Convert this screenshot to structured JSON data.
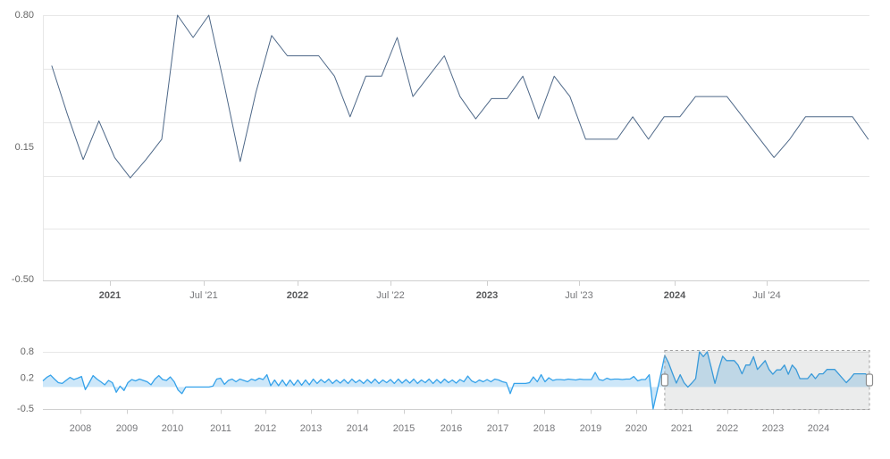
{
  "chart_data": [
    {
      "id": "main-chart",
      "type": "line",
      "title": "",
      "xlabel": "",
      "ylabel": "",
      "interval": "monthly",
      "x_start": "2020-09",
      "x_end": "2025-01",
      "ylim": [
        -0.5,
        0.8
      ],
      "grid": true,
      "legend": false,
      "line_color": "#4e6888",
      "yticks": [
        {
          "label": "0.80",
          "value": 0.8
        },
        {
          "label": "0.15",
          "value": 0.15
        },
        {
          "label": "-0.50",
          "value": -0.5
        }
      ],
      "xticks": [
        {
          "label": "2021",
          "emphasis": true
        },
        {
          "label": "Jul '21",
          "emphasis": false
        },
        {
          "label": "2022",
          "emphasis": true
        },
        {
          "label": "Jul '22",
          "emphasis": false
        },
        {
          "label": "2023",
          "emphasis": true
        },
        {
          "label": "Jul '23",
          "emphasis": false
        },
        {
          "label": "2024",
          "emphasis": true
        },
        {
          "label": "Jul '24",
          "emphasis": false
        }
      ],
      "series": [
        {
          "name": "series-1",
          "values": [
            0.55,
            0.31,
            0.09,
            0.28,
            0.1,
            0.0,
            0.09,
            0.19,
            0.8,
            0.69,
            0.8,
            0.45,
            0.08,
            0.42,
            0.7,
            0.6,
            0.6,
            0.6,
            0.5,
            0.3,
            0.5,
            0.5,
            0.69,
            0.4,
            0.5,
            0.6,
            0.4,
            0.29,
            0.39,
            0.39,
            0.5,
            0.29,
            0.5,
            0.4,
            0.19,
            0.19,
            0.19,
            0.3,
            0.19,
            0.3,
            0.3,
            0.4,
            0.4,
            0.4,
            0.3,
            0.2,
            0.1,
            0.19,
            0.3,
            0.3,
            0.3,
            0.3,
            0.19
          ]
        }
      ]
    },
    {
      "id": "navigator",
      "type": "area",
      "interval": "monthly",
      "x_start": "2007-03",
      "x_end": "2025-01",
      "ylim": [
        -0.5,
        0.8
      ],
      "baseline": 0,
      "grid": false,
      "legend": false,
      "line_color": "#35a2ea",
      "fill_color": "rgba(56,160,232,0.25)",
      "yticks": [
        {
          "label": "0.8",
          "value": 0.8
        },
        {
          "label": "0.2",
          "value": 0.2
        },
        {
          "label": "-0.5",
          "value": -0.5
        }
      ],
      "xticks": [
        {
          "label": "2008"
        },
        {
          "label": "2009"
        },
        {
          "label": "2010"
        },
        {
          "label": "2011"
        },
        {
          "label": "2012"
        },
        {
          "label": "2013"
        },
        {
          "label": "2014"
        },
        {
          "label": "2015"
        },
        {
          "label": "2016"
        },
        {
          "label": "2017"
        },
        {
          "label": "2018"
        },
        {
          "label": "2019"
        },
        {
          "label": "2020"
        },
        {
          "label": "2021"
        },
        {
          "label": "2022"
        },
        {
          "label": "2023"
        },
        {
          "label": "2024"
        }
      ],
      "values_before_selected_range": [
        0.14,
        0.22,
        0.27,
        0.18,
        0.1,
        0.08,
        0.15,
        0.22,
        0.17,
        0.2,
        0.24,
        -0.06,
        0.1,
        0.26,
        0.18,
        0.12,
        0.05,
        0.15,
        0.1,
        -0.12,
        0.02,
        -0.08,
        0.1,
        0.17,
        0.14,
        0.18,
        0.15,
        0.12,
        0.05,
        0.18,
        0.26,
        0.17,
        0.15,
        0.23,
        0.12,
        -0.07,
        -0.15,
        0.0,
        0.0,
        0.0,
        0.0,
        0.0,
        0.0,
        0.0,
        0.02,
        0.18,
        0.2,
        0.06,
        0.15,
        0.18,
        0.12,
        0.18,
        0.15,
        0.12,
        0.18,
        0.15,
        0.2,
        0.17,
        0.28,
        0.03,
        0.16,
        0.03,
        0.16,
        0.03,
        0.16,
        0.04,
        0.16,
        0.04,
        0.16,
        0.05,
        0.18,
        0.08,
        0.17,
        0.1,
        0.18,
        0.08,
        0.16,
        0.09,
        0.17,
        0.08,
        0.18,
        0.1,
        0.16,
        0.08,
        0.17,
        0.09,
        0.18,
        0.08,
        0.16,
        0.1,
        0.17,
        0.08,
        0.18,
        0.09,
        0.17,
        0.09,
        0.18,
        0.08,
        0.16,
        0.1,
        0.18,
        0.08,
        0.17,
        0.09,
        0.18,
        0.1,
        0.16,
        0.09,
        0.17,
        0.12,
        0.25,
        0.14,
        0.1,
        0.16,
        0.12,
        0.17,
        0.12,
        0.18,
        0.16,
        0.12,
        0.1,
        -0.15,
        0.08,
        0.08,
        0.08,
        0.08,
        0.1,
        0.23,
        0.12,
        0.28,
        0.12,
        0.21,
        0.15,
        0.17,
        0.17,
        0.16,
        0.18,
        0.17,
        0.16,
        0.18,
        0.17,
        0.17,
        0.17,
        0.33,
        0.17,
        0.15,
        0.2,
        0.17,
        0.18,
        0.18,
        0.17,
        0.18,
        0.18,
        0.24,
        0.14,
        0.17,
        0.17,
        0.28,
        -0.5,
        -0.1,
        0.3,
        0.72
      ],
      "selected_range": {
        "from_month": "2020-09",
        "to_month": "2025-01",
        "data_source": "main-chart series-1"
      }
    }
  ],
  "colors": {
    "main_line": "#4e6888",
    "navigator_line": "#35a2ea",
    "navigator_fill": "rgba(56,160,232,0.25)",
    "selection_mask": "rgba(90,95,100,0.12)",
    "grid_line": "#e7e7e7",
    "axis_line": "#cfcfcf",
    "axis_label": "#666666",
    "x_label_year": "#58595b",
    "x_label_month": "#76777a"
  }
}
